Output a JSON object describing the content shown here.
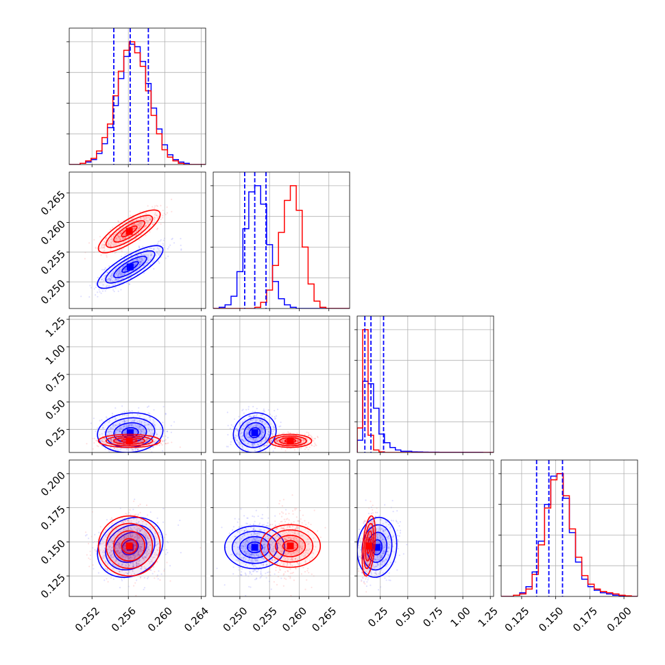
{
  "colors": {
    "series_blue": "#0000ff",
    "series_red": "#ff0000",
    "grid": "#b0b0b0"
  },
  "chart_data": {
    "type": "corner",
    "grid": true,
    "parameters": [
      {
        "range": [
          0.2495,
          0.2645
        ],
        "ticks": [
          0.252,
          0.256,
          0.26,
          0.264
        ],
        "tick_labels": [
          "0.252",
          "0.256",
          "0.260",
          "0.264"
        ],
        "blue": {
          "mean": 0.2562,
          "sd": 0.0018
        },
        "red": {
          "mean": 0.2561,
          "sd": 0.0017
        }
      },
      {
        "range": [
          0.2455,
          0.2685
        ],
        "ticks": [
          0.25,
          0.255,
          0.26,
          0.265
        ],
        "tick_labels": [
          "0.250",
          "0.255",
          "0.260",
          "0.265"
        ],
        "blue": {
          "mean": 0.2525,
          "sd": 0.0018
        },
        "red": {
          "mean": 0.2585,
          "sd": 0.0018
        }
      },
      {
        "range": [
          0.04,
          1.28
        ],
        "ticks": [
          0.25,
          0.5,
          0.75,
          1.0,
          1.25
        ],
        "tick_labels": [
          "0.25",
          "0.50",
          "0.75",
          "1.00",
          "1.25"
        ],
        "blue": {
          "mean": 0.22,
          "sd": 0.09
        },
        "red": {
          "mean": 0.145,
          "sd": 0.03
        }
      },
      {
        "range": [
          0.11,
          0.21
        ],
        "ticks": [
          0.125,
          0.15,
          0.175,
          0.2
        ],
        "tick_labels": [
          "0.125",
          "0.150",
          "0.175",
          "0.200"
        ],
        "blue": {
          "mean": 0.146,
          "sd": 0.011
        },
        "red": {
          "mean": 0.147,
          "sd": 0.011
        }
      }
    ],
    "quantile_lines": [
      [
        0.2544,
        0.2562,
        0.2582
      ],
      [
        0.2508,
        0.2525,
        0.2544
      ],
      [
        0.11,
        0.165,
        0.28
      ],
      [
        0.136,
        0.145,
        0.155
      ]
    ],
    "histograms": [
      {
        "edges": [
          0.2495,
          0.2645
        ],
        "blue": [
          0,
          0,
          1,
          2,
          4,
          9,
          17,
          30,
          48,
          70,
          88,
          98,
          96,
          84,
          66,
          46,
          29,
          16,
          8,
          4,
          2,
          1,
          0,
          0,
          0
        ],
        "red": [
          0,
          0,
          1,
          3,
          5,
          11,
          22,
          33,
          56,
          76,
          93,
          100,
          91,
          80,
          60,
          40,
          25,
          12,
          6,
          3,
          1,
          0,
          0,
          0,
          0
        ]
      },
      {
        "edges": [
          0.2455,
          0.2685
        ],
        "blue": [
          0,
          1,
          3,
          10,
          30,
          65,
          95,
          100,
          85,
          52,
          22,
          8,
          3,
          1,
          0,
          0,
          0,
          0,
          0,
          0,
          0,
          0,
          0
        ],
        "red": [
          0,
          0,
          0,
          0,
          0,
          0,
          0,
          1,
          5,
          15,
          35,
          62,
          88,
          100,
          80,
          50,
          20,
          6,
          1,
          0,
          0,
          0,
          0
        ]
      },
      {
        "edges": [
          0.04,
          1.28
        ],
        "blue": [
          10,
          58,
          56,
          36,
          15,
          8,
          4,
          2,
          1,
          1,
          0.5,
          0.4,
          0.3,
          0.2,
          0.2,
          0.1,
          0.1,
          0.1,
          0.1,
          0.1,
          0.1,
          0.1,
          0.1,
          0,
          0
        ],
        "red": [
          20,
          100,
          14,
          2,
          0.5,
          0,
          0,
          0,
          0,
          0,
          0,
          0,
          0,
          0,
          0,
          0,
          0,
          0,
          0,
          0,
          0,
          0,
          0,
          0,
          0
        ]
      },
      {
        "edges": [
          0.11,
          0.21
        ],
        "blue": [
          0,
          0,
          1,
          3,
          8,
          20,
          45,
          75,
          98,
          100,
          80,
          52,
          28,
          14,
          8,
          5,
          3,
          2,
          1,
          0.5,
          0.2,
          0
        ],
        "red": [
          0,
          0,
          1,
          2,
          6,
          18,
          42,
          72,
          95,
          100,
          82,
          55,
          32,
          17,
          10,
          6,
          4,
          3,
          2,
          1,
          0.5,
          0
        ]
      }
    ],
    "pairs": [
      {
        "row": 1,
        "col": 0,
        "blue": {
          "rho": 0.8
        },
        "red": {
          "rho": 0.8
        }
      },
      {
        "row": 2,
        "col": 0,
        "blue": {
          "rho": 0.1
        },
        "red": {
          "rho": 0.0
        }
      },
      {
        "row": 2,
        "col": 1,
        "blue": {
          "rho": 0.1
        },
        "red": {
          "rho": 0.0
        }
      },
      {
        "row": 3,
        "col": 0,
        "blue": {
          "rho": 0.2
        },
        "red": {
          "rho": 0.0
        }
      },
      {
        "row": 3,
        "col": 1,
        "blue": {
          "rho": 0.0
        },
        "red": {
          "rho": 0.0
        }
      },
      {
        "row": 3,
        "col": 2,
        "blue": {
          "rho": 0.1
        },
        "red": {
          "rho": 0.4
        }
      }
    ],
    "contour_levels_sigma": [
      0.5,
      1.0,
      1.5,
      2.0
    ]
  }
}
